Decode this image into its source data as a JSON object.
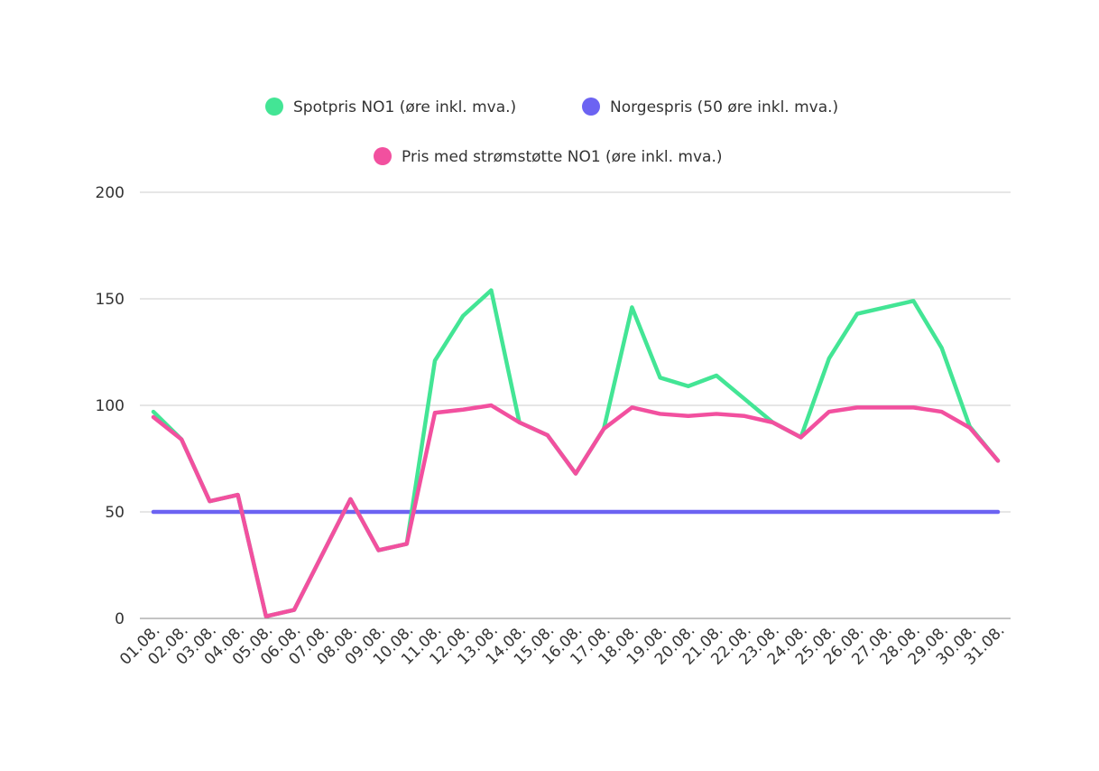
{
  "chart_data": {
    "type": "line",
    "title": "",
    "xlabel": "",
    "ylabel": "",
    "ylim": [
      0,
      200
    ],
    "yticks": [
      0,
      50,
      100,
      150,
      200
    ],
    "grid": true,
    "legend_placement": "top",
    "categories": [
      "01.08.",
      "02.08.",
      "03.08.",
      "04.08.",
      "05.08.",
      "06.08.",
      "07.08.",
      "08.08.",
      "09.08.",
      "10.08.",
      "11.08.",
      "12.08.",
      "13.08.",
      "14.08.",
      "15.08.",
      "16.08.",
      "17.08.",
      "18.08.",
      "19.08.",
      "20.08.",
      "21.08.",
      "22.08.",
      "23.08.",
      "24.08.",
      "25.08.",
      "26.08.",
      "27.08.",
      "28.08.",
      "29.08.",
      "30.08.",
      "31.08."
    ],
    "series": [
      {
        "name": "Spotpris NO1 (øre inkl. mva.)",
        "color": "#43e595",
        "values": [
          97,
          84,
          55,
          58,
          1,
          4,
          30,
          56,
          32,
          35,
          121,
          142,
          154,
          92,
          86,
          68,
          89,
          146,
          113,
          109,
          114,
          103,
          92,
          85,
          122,
          143,
          146,
          149,
          127,
          90,
          74
        ]
      },
      {
        "name": "Norgespris (50 øre inkl. mva.)",
        "color": "#6c63f2",
        "values": [
          50,
          50,
          50,
          50,
          50,
          50,
          50,
          50,
          50,
          50,
          50,
          50,
          50,
          50,
          50,
          50,
          50,
          50,
          50,
          50,
          50,
          50,
          50,
          50,
          50,
          50,
          50,
          50,
          50,
          50,
          50
        ]
      },
      {
        "name": "Pris med strømstøtte NO1 (øre inkl. mva.)",
        "color": "#f2509f",
        "values": [
          94.5,
          84,
          55,
          58,
          1,
          4,
          30,
          56,
          32,
          35,
          96.5,
          98,
          100,
          92,
          86,
          68,
          89,
          99,
          96,
          95,
          96,
          95,
          92,
          85,
          97,
          99,
          99,
          99,
          97,
          89.5,
          74
        ]
      }
    ]
  }
}
